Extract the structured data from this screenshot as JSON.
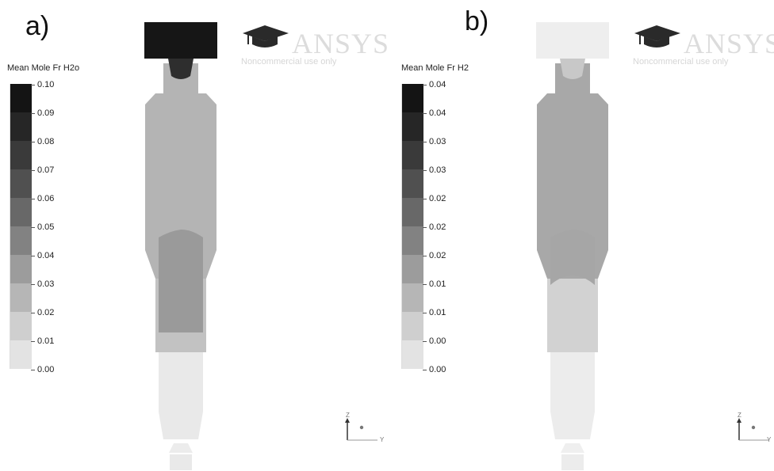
{
  "panels": [
    {
      "label": "a)",
      "legend": {
        "title": "Mean Mole Fr H2o",
        "ticks": [
          "0.10",
          "0.09",
          "0.08",
          "0.07",
          "0.06",
          "0.05",
          "0.04",
          "0.03",
          "0.02",
          "0.01",
          "0.00"
        ],
        "colors": [
          "#141414",
          "#262626",
          "#3a3a3a",
          "#505050",
          "#686868",
          "#828282",
          "#9c9c9c",
          "#b6b6b6",
          "#cfcfcf",
          "#e3e3e3"
        ]
      },
      "logo": {
        "word": "ANSYS",
        "sub": "Noncommercial use only"
      },
      "axes": {
        "z": "Z",
        "y": "Y"
      },
      "contour_colors": {
        "top": "#161616",
        "throat": "#2e2e2e",
        "upper": "#b4b4b4",
        "core": "#9a9a9a",
        "lower": "#c2c2c2",
        "bottom": "#e9e9e9"
      }
    },
    {
      "label": "b)",
      "legend": {
        "title": "Mean Mole Fr H2",
        "ticks": [
          "0.04",
          "0.04",
          "0.03",
          "0.03",
          "0.02",
          "0.02",
          "0.02",
          "0.01",
          "0.01",
          "0.00",
          "0.00"
        ],
        "colors": [
          "#141414",
          "#262626",
          "#3a3a3a",
          "#505050",
          "#686868",
          "#828282",
          "#9c9c9c",
          "#b6b6b6",
          "#cfcfcf",
          "#e3e3e3"
        ]
      },
      "logo": {
        "word": "ANSYS",
        "sub": "Noncommercial use only"
      },
      "axes": {
        "z": "Z",
        "y": "Y"
      },
      "contour_colors": {
        "top": "#eeeeee",
        "throat": "#c8c8c8",
        "upper": "#a8a8a8",
        "core": "#a6a6a6",
        "lower": "#d2d2d2",
        "bottom": "#ececec"
      }
    }
  ]
}
